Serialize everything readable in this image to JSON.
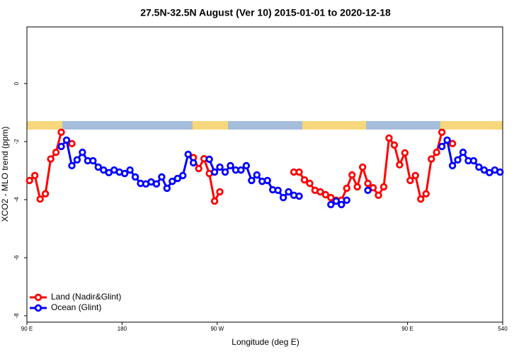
{
  "chart_data": {
    "type": "line",
    "title": "27.5N-32.5N August (Ver 10)   2015-01-01 to 2020-12-18",
    "xlabel": "Longitude (deg E)",
    "ylabel": "XCO2 - MLO trend (ppm)",
    "x": [
      92.5,
      97.5,
      102.5,
      107.5,
      112.5,
      117.5,
      122.5,
      127.5,
      132.5,
      137.5,
      142.5,
      147.5,
      152.5,
      157.5,
      162.5,
      167.5,
      172.5,
      177.5,
      182.5,
      187.5,
      192.5,
      197.5,
      202.5,
      207.5,
      212.5,
      217.5,
      222.5,
      227.5,
      232.5,
      237.5,
      242.5,
      247.5,
      252.5,
      257.5,
      262.5,
      267.5,
      272.5,
      277.5,
      282.5,
      287.5,
      292.5,
      297.5,
      302.5,
      307.5,
      312.5,
      317.5,
      322.5,
      327.5,
      332.5,
      337.5,
      342.5,
      347.5,
      352.5,
      357.5,
      362.5,
      367.5,
      372.5,
      377.5,
      382.5,
      387.5,
      392.5,
      397.5,
      402.5,
      407.5,
      412.5,
      417.5,
      422.5,
      427.5,
      432.5,
      437.5,
      442.5,
      447.5,
      452.5,
      457.5,
      462.5,
      467.5,
      472.5,
      477.5,
      482.5,
      487.5,
      492.5,
      497.5,
      502.5,
      507.5,
      512.5,
      517.5,
      522.5,
      527.5,
      532.5,
      537.5
    ],
    "series": [
      {
        "name": "Land (Nadir&Glint)",
        "color": "#ff0000",
        "values": [
          -3.34,
          -3.17,
          -3.98,
          -3.8,
          -2.6,
          -2.37,
          -1.68,
          null,
          -2.07,
          null,
          null,
          null,
          null,
          null,
          null,
          null,
          null,
          null,
          null,
          null,
          null,
          null,
          null,
          null,
          null,
          null,
          null,
          null,
          null,
          null,
          null,
          -2.55,
          -2.93,
          -2.59,
          -3.1,
          -4.05,
          -3.73,
          null,
          null,
          null,
          null,
          null,
          null,
          null,
          null,
          null,
          null,
          null,
          null,
          null,
          -3.05,
          -3.05,
          -3.32,
          -3.44,
          -3.68,
          -3.73,
          -3.83,
          -3.93,
          -4.02,
          -4.02,
          -3.61,
          -3.15,
          -3.56,
          -2.88,
          -3.44,
          -3.59,
          -3.85,
          -3.56,
          -1.88,
          -2.12,
          -2.8,
          -2.39,
          -3.34,
          -3.17,
          -3.98,
          -3.8,
          -2.6,
          -2.37,
          -1.68,
          null,
          -2.07,
          null,
          null,
          null,
          null,
          null,
          null,
          null,
          null,
          null
        ]
      },
      {
        "name": "Ocean (Glint)",
        "color": "#0000ff",
        "values": [
          null,
          null,
          null,
          null,
          null,
          null,
          -2.17,
          -1.95,
          -2.83,
          -2.63,
          -2.37,
          -2.66,
          -2.66,
          -2.88,
          -2.98,
          -3.07,
          -2.98,
          -3.05,
          -3.1,
          -2.98,
          -3.22,
          -3.44,
          -3.46,
          -3.39,
          -3.46,
          -3.22,
          -3.61,
          -3.37,
          -3.27,
          -3.17,
          -2.44,
          -2.73,
          null,
          null,
          -2.61,
          -3.05,
          -2.88,
          -3.05,
          -2.83,
          -2.98,
          -2.98,
          -2.83,
          -3.34,
          -3.15,
          -3.37,
          -3.34,
          -3.66,
          -3.68,
          -3.93,
          -3.73,
          -3.85,
          -3.88,
          null,
          null,
          null,
          null,
          null,
          -4.17,
          -4.05,
          -4.17,
          -4.02,
          null,
          null,
          null,
          -3.68,
          null,
          null,
          null,
          null,
          null,
          null,
          null,
          null,
          null,
          null,
          null,
          null,
          null,
          -2.17,
          -1.95,
          -2.83,
          -2.63,
          -2.37,
          -2.66,
          -2.66,
          -2.88,
          -2.98,
          -3.07,
          -2.98,
          -3.05
        ]
      }
    ],
    "xlim": [
      90,
      540
    ],
    "xticks": [
      {
        "value": 90,
        "label": "90 E"
      },
      180,
      {
        "value": 270,
        "label": "90 W"
      },
      {
        "value": 450,
        "label": "90 E"
      },
      540
    ],
    "ylim": [
      -8.22,
      1.95
    ],
    "yticks": [
      0,
      -2,
      -4,
      -6,
      -8
    ],
    "legend": "bottomleft"
  }
}
